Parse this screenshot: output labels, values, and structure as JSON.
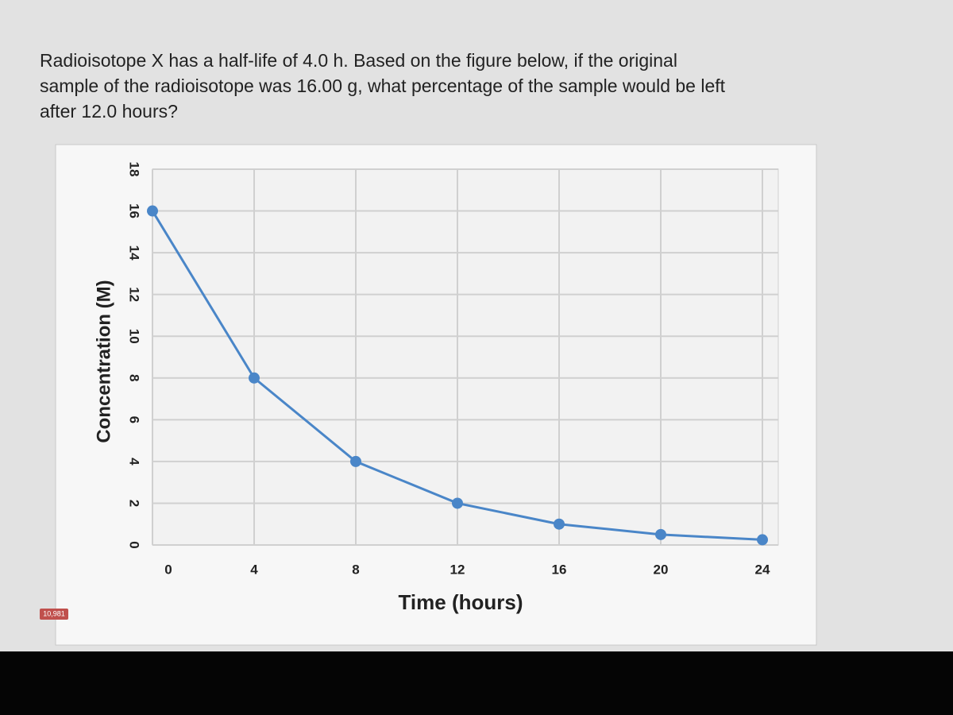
{
  "question": [
    "Radioisotope X has a half-life of 4.0 h. Based on the figure below, if the original",
    "sample of the radioisotope was 16.00 g, what percentage of the sample would be left",
    "after 12.0 hours?"
  ],
  "badge": "10,981",
  "chart_data": {
    "type": "line",
    "x_label": "Time (hours)",
    "y_label": "Concentration (M)",
    "x": [
      0,
      4,
      8,
      12,
      16,
      20,
      24
    ],
    "values": [
      16,
      8,
      4,
      2,
      1,
      0.5,
      0.25
    ],
    "color": "#4a86c8",
    "xlim": [
      0,
      24
    ],
    "xticks": [
      0,
      4,
      8,
      12,
      16,
      20,
      24
    ],
    "ylim": [
      0,
      18
    ],
    "yticks": [
      0,
      2,
      4,
      6,
      8,
      10,
      12,
      14,
      16,
      18
    ],
    "grid": true
  }
}
